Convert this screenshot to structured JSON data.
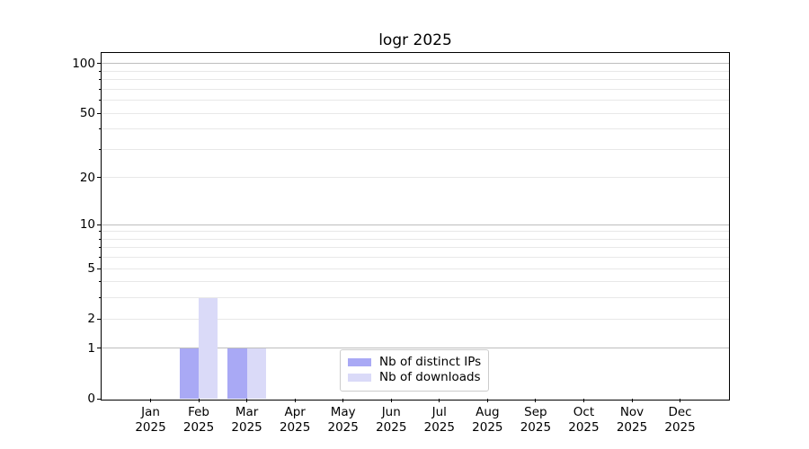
{
  "figure": {
    "background": "#ffffff"
  },
  "chart_data": {
    "type": "bar",
    "title": "logr 2025",
    "categories": [
      "Jan",
      "Feb",
      "Mar",
      "Apr",
      "May",
      "Jun",
      "Jul",
      "Aug",
      "Sep",
      "Oct",
      "Nov",
      "Dec"
    ],
    "xtick_year": "2025",
    "series": [
      {
        "name": "Nb of distinct IPs",
        "color": "#a9a9f5",
        "values": [
          0,
          1,
          1,
          0,
          0,
          0,
          0,
          0,
          0,
          0,
          0,
          0
        ]
      },
      {
        "name": "Nb of downloads",
        "color": "#dadaf8",
        "values": [
          0,
          3,
          1,
          0,
          0,
          0,
          0,
          0,
          0,
          0,
          0,
          0
        ]
      }
    ],
    "xlabel": "",
    "ylabel": "",
    "yscale": "log1p",
    "ylim": [
      0,
      116
    ],
    "yticks_labeled": [
      0,
      1,
      2,
      5,
      10,
      20,
      50,
      100
    ],
    "y_gridlines": [
      {
        "v": 1,
        "major": true
      },
      {
        "v": 2
      },
      {
        "v": 3
      },
      {
        "v": 4
      },
      {
        "v": 5
      },
      {
        "v": 6
      },
      {
        "v": 7
      },
      {
        "v": 8
      },
      {
        "v": 9
      },
      {
        "v": 10,
        "major": true
      },
      {
        "v": 20
      },
      {
        "v": 30
      },
      {
        "v": 40
      },
      {
        "v": 50
      },
      {
        "v": 60
      },
      {
        "v": 70
      },
      {
        "v": 80
      },
      {
        "v": 90
      },
      {
        "v": 100,
        "major": true
      }
    ],
    "grid": "on",
    "grid_color_major": "#bdbdbd",
    "grid_color_minor": "#e8e8e8",
    "legend": {
      "position": "lower-center",
      "items": [
        "Nb of distinct IPs",
        "Nb of downloads"
      ]
    }
  }
}
